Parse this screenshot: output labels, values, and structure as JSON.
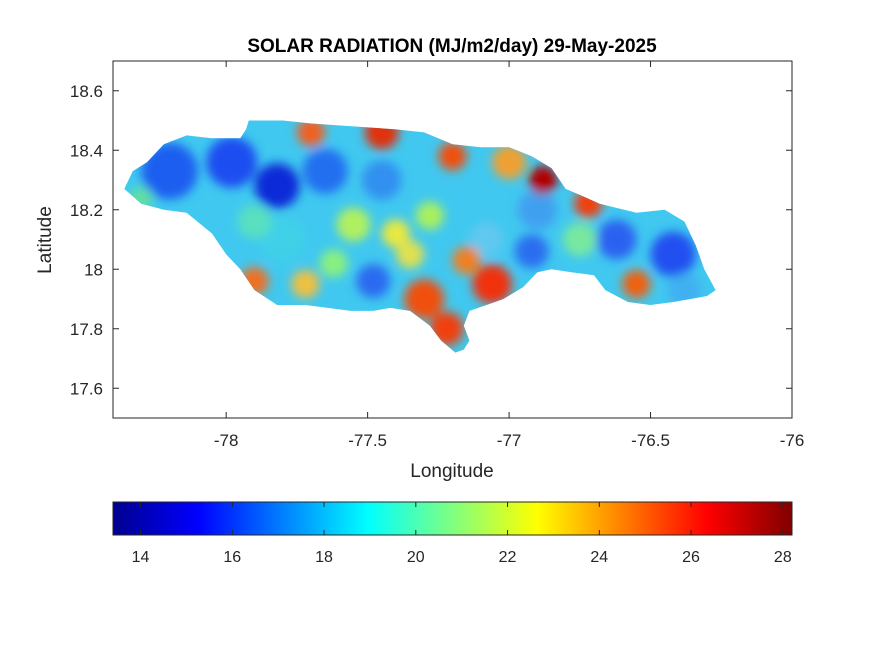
{
  "figure": {
    "title": "SOLAR RADIATION (MJ/m2/day) 29-May-2025"
  },
  "chart_data": {
    "type": "heatmap",
    "title": "SOLAR RADIATION (MJ/m2/day) 29-May-2025",
    "xlabel": "Longitude",
    "ylabel": "Latitude",
    "xlim": [
      -78.4,
      -76.0
    ],
    "ylim": [
      17.5,
      18.7
    ],
    "x_ticks": [
      {
        "value": -78,
        "label": "-78"
      },
      {
        "value": -77.5,
        "label": "-77.5"
      },
      {
        "value": -77,
        "label": "-77"
      },
      {
        "value": -76.5,
        "label": "-76.5"
      },
      {
        "value": -76,
        "label": "-76"
      }
    ],
    "y_ticks": [
      {
        "value": 17.6,
        "label": "17.6"
      },
      {
        "value": 17.8,
        "label": "17.8"
      },
      {
        "value": 18,
        "label": "18"
      },
      {
        "value": 18.2,
        "label": "18.2"
      },
      {
        "value": 18.4,
        "label": "18.4"
      },
      {
        "value": 18.6,
        "label": "18.6"
      }
    ],
    "colormap": "jet",
    "colorbar": {
      "orientation": "horizontal",
      "range": [
        13.4,
        28.2
      ],
      "ticks": [
        {
          "value": 14,
          "label": "14"
        },
        {
          "value": 16,
          "label": "16"
        },
        {
          "value": 18,
          "label": "18"
        },
        {
          "value": 20,
          "label": "20"
        },
        {
          "value": 22,
          "label": "22"
        },
        {
          "value": 24,
          "label": "24"
        },
        {
          "value": 26,
          "label": "26"
        },
        {
          "value": 28,
          "label": "28"
        }
      ]
    },
    "outline_lonlat": [
      [
        -78.36,
        18.27
      ],
      [
        -78.33,
        18.33
      ],
      [
        -78.28,
        18.36
      ],
      [
        -78.22,
        18.42
      ],
      [
        -78.14,
        18.45
      ],
      [
        -78.05,
        18.44
      ],
      [
        -77.95,
        18.44
      ],
      [
        -77.93,
        18.47
      ],
      [
        -77.92,
        18.5
      ],
      [
        -77.8,
        18.5
      ],
      [
        -77.7,
        18.49
      ],
      [
        -77.55,
        18.48
      ],
      [
        -77.4,
        18.47
      ],
      [
        -77.3,
        18.46
      ],
      [
        -77.2,
        18.42
      ],
      [
        -77.1,
        18.41
      ],
      [
        -77.0,
        18.41
      ],
      [
        -76.92,
        18.38
      ],
      [
        -76.85,
        18.34
      ],
      [
        -76.8,
        18.27
      ],
      [
        -76.75,
        18.25
      ],
      [
        -76.68,
        18.22
      ],
      [
        -76.55,
        18.19
      ],
      [
        -76.45,
        18.2
      ],
      [
        -76.38,
        18.16
      ],
      [
        -76.34,
        18.08
      ],
      [
        -76.31,
        18.0
      ],
      [
        -76.27,
        17.93
      ],
      [
        -76.3,
        17.91
      ],
      [
        -76.42,
        17.89
      ],
      [
        -76.5,
        17.88
      ],
      [
        -76.58,
        17.89
      ],
      [
        -76.66,
        17.93
      ],
      [
        -76.7,
        17.98
      ],
      [
        -76.78,
        17.99
      ],
      [
        -76.85,
        18.0
      ],
      [
        -76.9,
        17.99
      ],
      [
        -76.95,
        17.94
      ],
      [
        -77.02,
        17.9
      ],
      [
        -77.08,
        17.88
      ],
      [
        -77.14,
        17.86
      ],
      [
        -77.16,
        17.81
      ],
      [
        -77.14,
        17.76
      ],
      [
        -77.16,
        17.73
      ],
      [
        -77.19,
        17.72
      ],
      [
        -77.24,
        17.76
      ],
      [
        -77.28,
        17.81
      ],
      [
        -77.35,
        17.86
      ],
      [
        -77.42,
        17.87
      ],
      [
        -77.48,
        17.86
      ],
      [
        -77.56,
        17.86
      ],
      [
        -77.64,
        17.87
      ],
      [
        -77.72,
        17.88
      ],
      [
        -77.82,
        17.88
      ],
      [
        -77.9,
        17.93
      ],
      [
        -77.95,
        18.0
      ],
      [
        -78.0,
        18.05
      ],
      [
        -78.05,
        18.12
      ],
      [
        -78.14,
        18.19
      ],
      [
        -78.22,
        18.2
      ],
      [
        -78.3,
        18.22
      ],
      [
        -78.36,
        18.27
      ]
    ]
  }
}
